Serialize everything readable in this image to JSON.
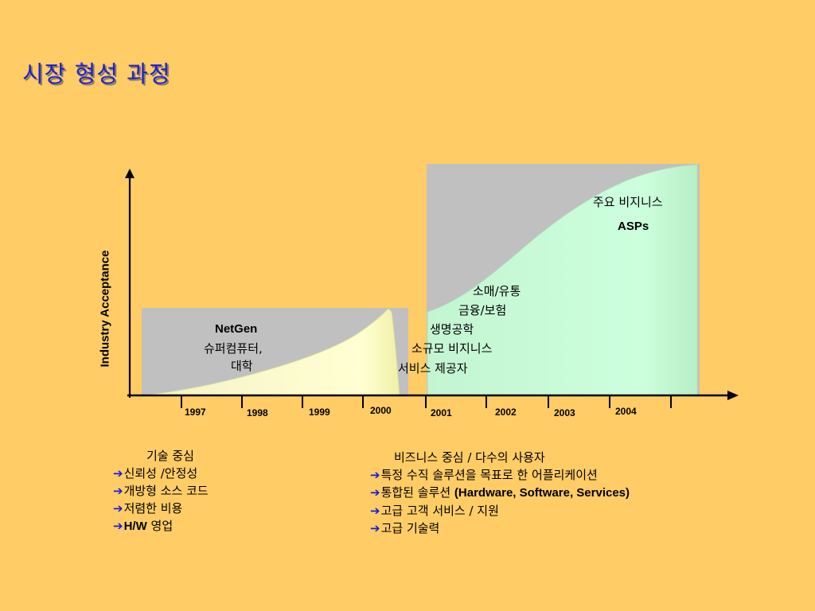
{
  "slide": {
    "title": "시장 형성 과정"
  },
  "axis": {
    "y_label": "Industry Acceptance",
    "years": [
      "1997",
      "1998",
      "1999",
      "2000",
      "2001",
      "2002",
      "2003",
      "2004"
    ]
  },
  "left_region": {
    "name": "NetGen",
    "lines": [
      "슈퍼컴퓨터,",
      "대학"
    ]
  },
  "right_region": {
    "top_label": "주요 비지니스",
    "top_label2": "ASPs",
    "segments": [
      "소매/유통",
      "금융/보험",
      "생명공학",
      "소규모 비지니스",
      "서비스 제공자"
    ]
  },
  "left_list": {
    "heading": "기술 중심",
    "items": [
      {
        "text": "신뢰성 /안정성"
      },
      {
        "text": "개방형 소스 코드"
      },
      {
        "text": "저렴한 비용"
      },
      {
        "bold": "H/W",
        "text": " 영업"
      }
    ]
  },
  "right_list": {
    "heading": "비즈니스 중심 / 다수의 사용자",
    "items": [
      {
        "text": "특정 수직 솔루션을 목표로 한 어플리케이션"
      },
      {
        "text": "통합된 솔루션 ",
        "bold": "(Hardware, Software, Services)"
      },
      {
        "text": "고급 고객 서비스 / 지원"
      },
      {
        "text": "고급 기술력"
      }
    ]
  },
  "colors": {
    "background": "#FFCC66",
    "title": "#1E22D8",
    "region_gray": "#C0C0C0",
    "left_curve": "#FFFFCC",
    "right_curve": "#CCFFDD",
    "arrow_bullet": "#1A1ADB"
  }
}
